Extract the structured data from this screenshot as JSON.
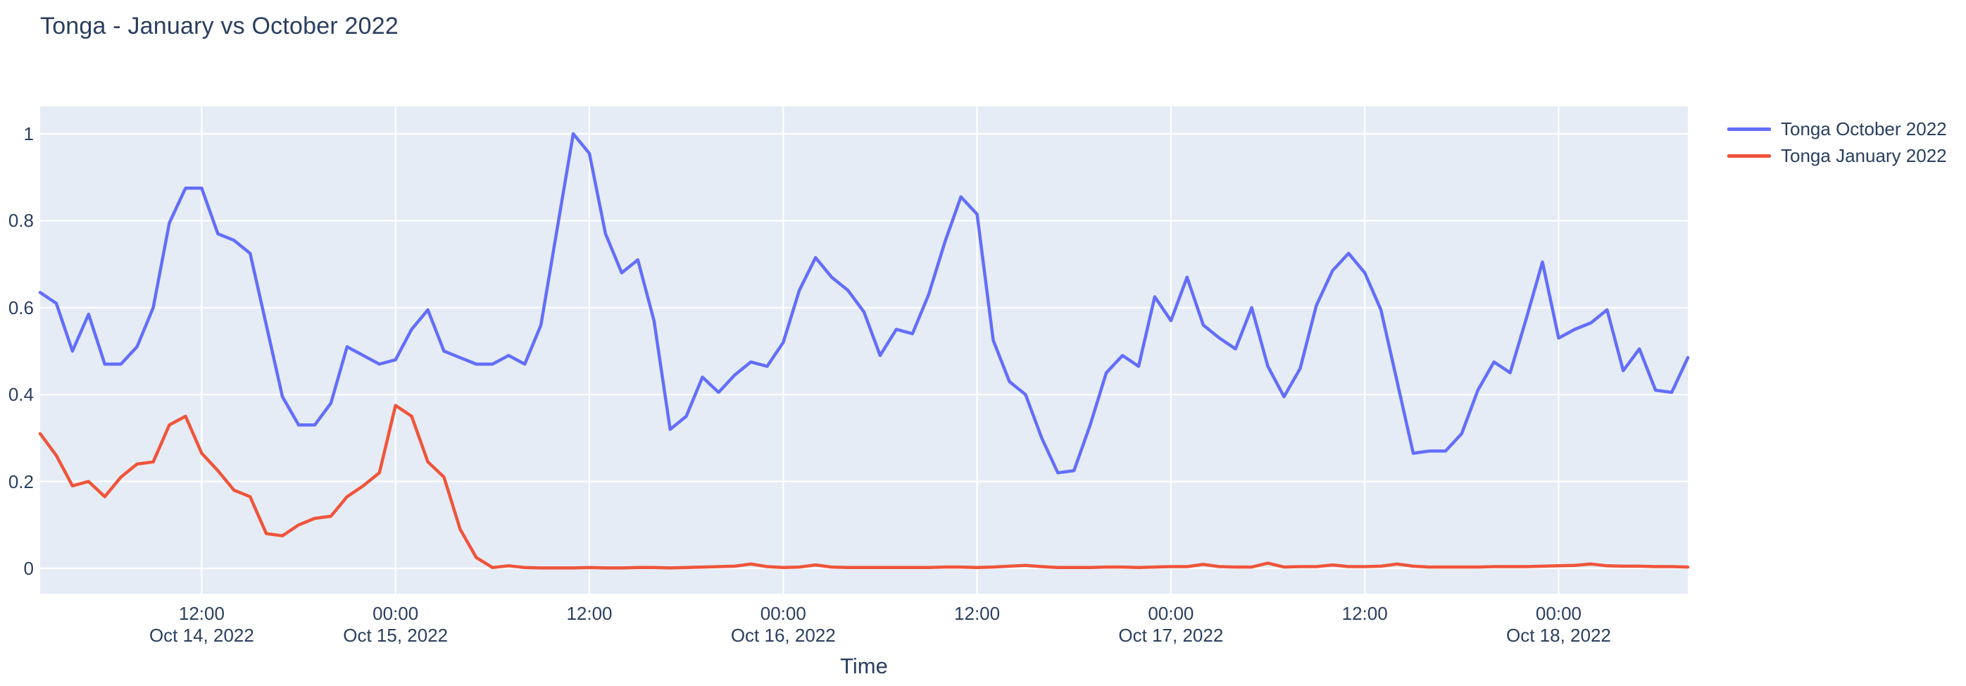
{
  "title": "Tonga - January vs October 2022",
  "colors": {
    "text": "#2a3f5f",
    "plot_background": "#e5ecf6",
    "gridline": "#ffffff",
    "series_october": "#636efa",
    "series_january": "#ef553b"
  },
  "legend": {
    "items": [
      {
        "label": "Tonga October 2022",
        "color": "#636efa"
      },
      {
        "label": "Tonga January 2022",
        "color": "#ef553b"
      }
    ]
  },
  "x_axis": {
    "title": "Time",
    "ticks": [
      {
        "hour_offset": 10,
        "time": "12:00",
        "date": "Oct 14, 2022"
      },
      {
        "hour_offset": 22,
        "time": "00:00",
        "date": "Oct 15, 2022"
      },
      {
        "hour_offset": 34,
        "time": "12:00",
        "date": ""
      },
      {
        "hour_offset": 46,
        "time": "00:00",
        "date": "Oct 16, 2022"
      },
      {
        "hour_offset": 58,
        "time": "12:00",
        "date": ""
      },
      {
        "hour_offset": 70,
        "time": "00:00",
        "date": "Oct 17, 2022"
      },
      {
        "hour_offset": 82,
        "time": "12:00",
        "date": ""
      },
      {
        "hour_offset": 94,
        "time": "00:00",
        "date": "Oct 18, 2022"
      }
    ]
  },
  "y_axis": {
    "ticks": [
      {
        "value": 0,
        "label": "0"
      },
      {
        "value": 0.2,
        "label": "0.2"
      },
      {
        "value": 0.4,
        "label": "0.4"
      },
      {
        "value": 0.6,
        "label": "0.6"
      },
      {
        "value": 0.8,
        "label": "0.8"
      },
      {
        "value": 1,
        "label": "1"
      }
    ]
  },
  "chart_data": {
    "type": "line",
    "title": "Tonga - January vs October 2022",
    "xlabel": "Time",
    "ylabel": "",
    "x_start": "2022-10-14 02:00",
    "x_end": "2022-10-18 08:00",
    "x_interval": "1 hour",
    "x_hours_span": 102,
    "ylim": [
      -0.06,
      1.06
    ],
    "grid": true,
    "legend_position": "top-right-outside",
    "series": [
      {
        "name": "Tonga October 2022",
        "color": "#636efa",
        "values": [
          0.635,
          0.61,
          0.5,
          0.585,
          0.47,
          0.47,
          0.51,
          0.6,
          0.795,
          0.875,
          0.875,
          0.77,
          0.755,
          0.725,
          0.56,
          0.395,
          0.33,
          0.33,
          0.38,
          0.51,
          0.49,
          0.47,
          0.48,
          0.55,
          0.595,
          0.5,
          0.485,
          0.47,
          0.47,
          0.49,
          0.47,
          0.56,
          0.78,
          1.0,
          0.955,
          0.77,
          0.68,
          0.71,
          0.57,
          0.32,
          0.35,
          0.44,
          0.405,
          0.445,
          0.475,
          0.465,
          0.52,
          0.64,
          0.715,
          0.67,
          0.64,
          0.59,
          0.49,
          0.55,
          0.54,
          0.63,
          0.75,
          0.855,
          0.815,
          0.525,
          0.43,
          0.4,
          0.3,
          0.22,
          0.225,
          0.33,
          0.45,
          0.49,
          0.465,
          0.625,
          0.57,
          0.67,
          0.56,
          0.53,
          0.505,
          0.6,
          0.465,
          0.395,
          0.46,
          0.605,
          0.685,
          0.725,
          0.68,
          0.595,
          0.43,
          0.265,
          0.27,
          0.27,
          0.31,
          0.41,
          0.475,
          0.45,
          0.575,
          0.705,
          0.53,
          0.55,
          0.565,
          0.595,
          0.455,
          0.505,
          0.41,
          0.405,
          0.485
        ]
      },
      {
        "name": "Tonga January 2022",
        "color": "#ef553b",
        "values": [
          0.31,
          0.26,
          0.19,
          0.2,
          0.165,
          0.21,
          0.24,
          0.245,
          0.33,
          0.35,
          0.265,
          0.225,
          0.18,
          0.165,
          0.08,
          0.075,
          0.1,
          0.115,
          0.12,
          0.165,
          0.19,
          0.22,
          0.375,
          0.35,
          0.245,
          0.21,
          0.09,
          0.025,
          0.002,
          0.006,
          0.002,
          0.001,
          0.001,
          0.001,
          0.002,
          0.001,
          0.001,
          0.002,
          0.002,
          0.001,
          0.002,
          0.003,
          0.004,
          0.005,
          0.01,
          0.004,
          0.002,
          0.003,
          0.008,
          0.003,
          0.002,
          0.002,
          0.002,
          0.002,
          0.002,
          0.002,
          0.003,
          0.003,
          0.002,
          0.003,
          0.005,
          0.007,
          0.004,
          0.002,
          0.002,
          0.002,
          0.003,
          0.003,
          0.002,
          0.003,
          0.004,
          0.004,
          0.009,
          0.004,
          0.003,
          0.003,
          0.012,
          0.003,
          0.004,
          0.004,
          0.008,
          0.004,
          0.004,
          0.005,
          0.01,
          0.005,
          0.003,
          0.003,
          0.003,
          0.003,
          0.004,
          0.004,
          0.004,
          0.005,
          0.006,
          0.007,
          0.01,
          0.006,
          0.005,
          0.005,
          0.004,
          0.004,
          0.003
        ]
      }
    ]
  }
}
